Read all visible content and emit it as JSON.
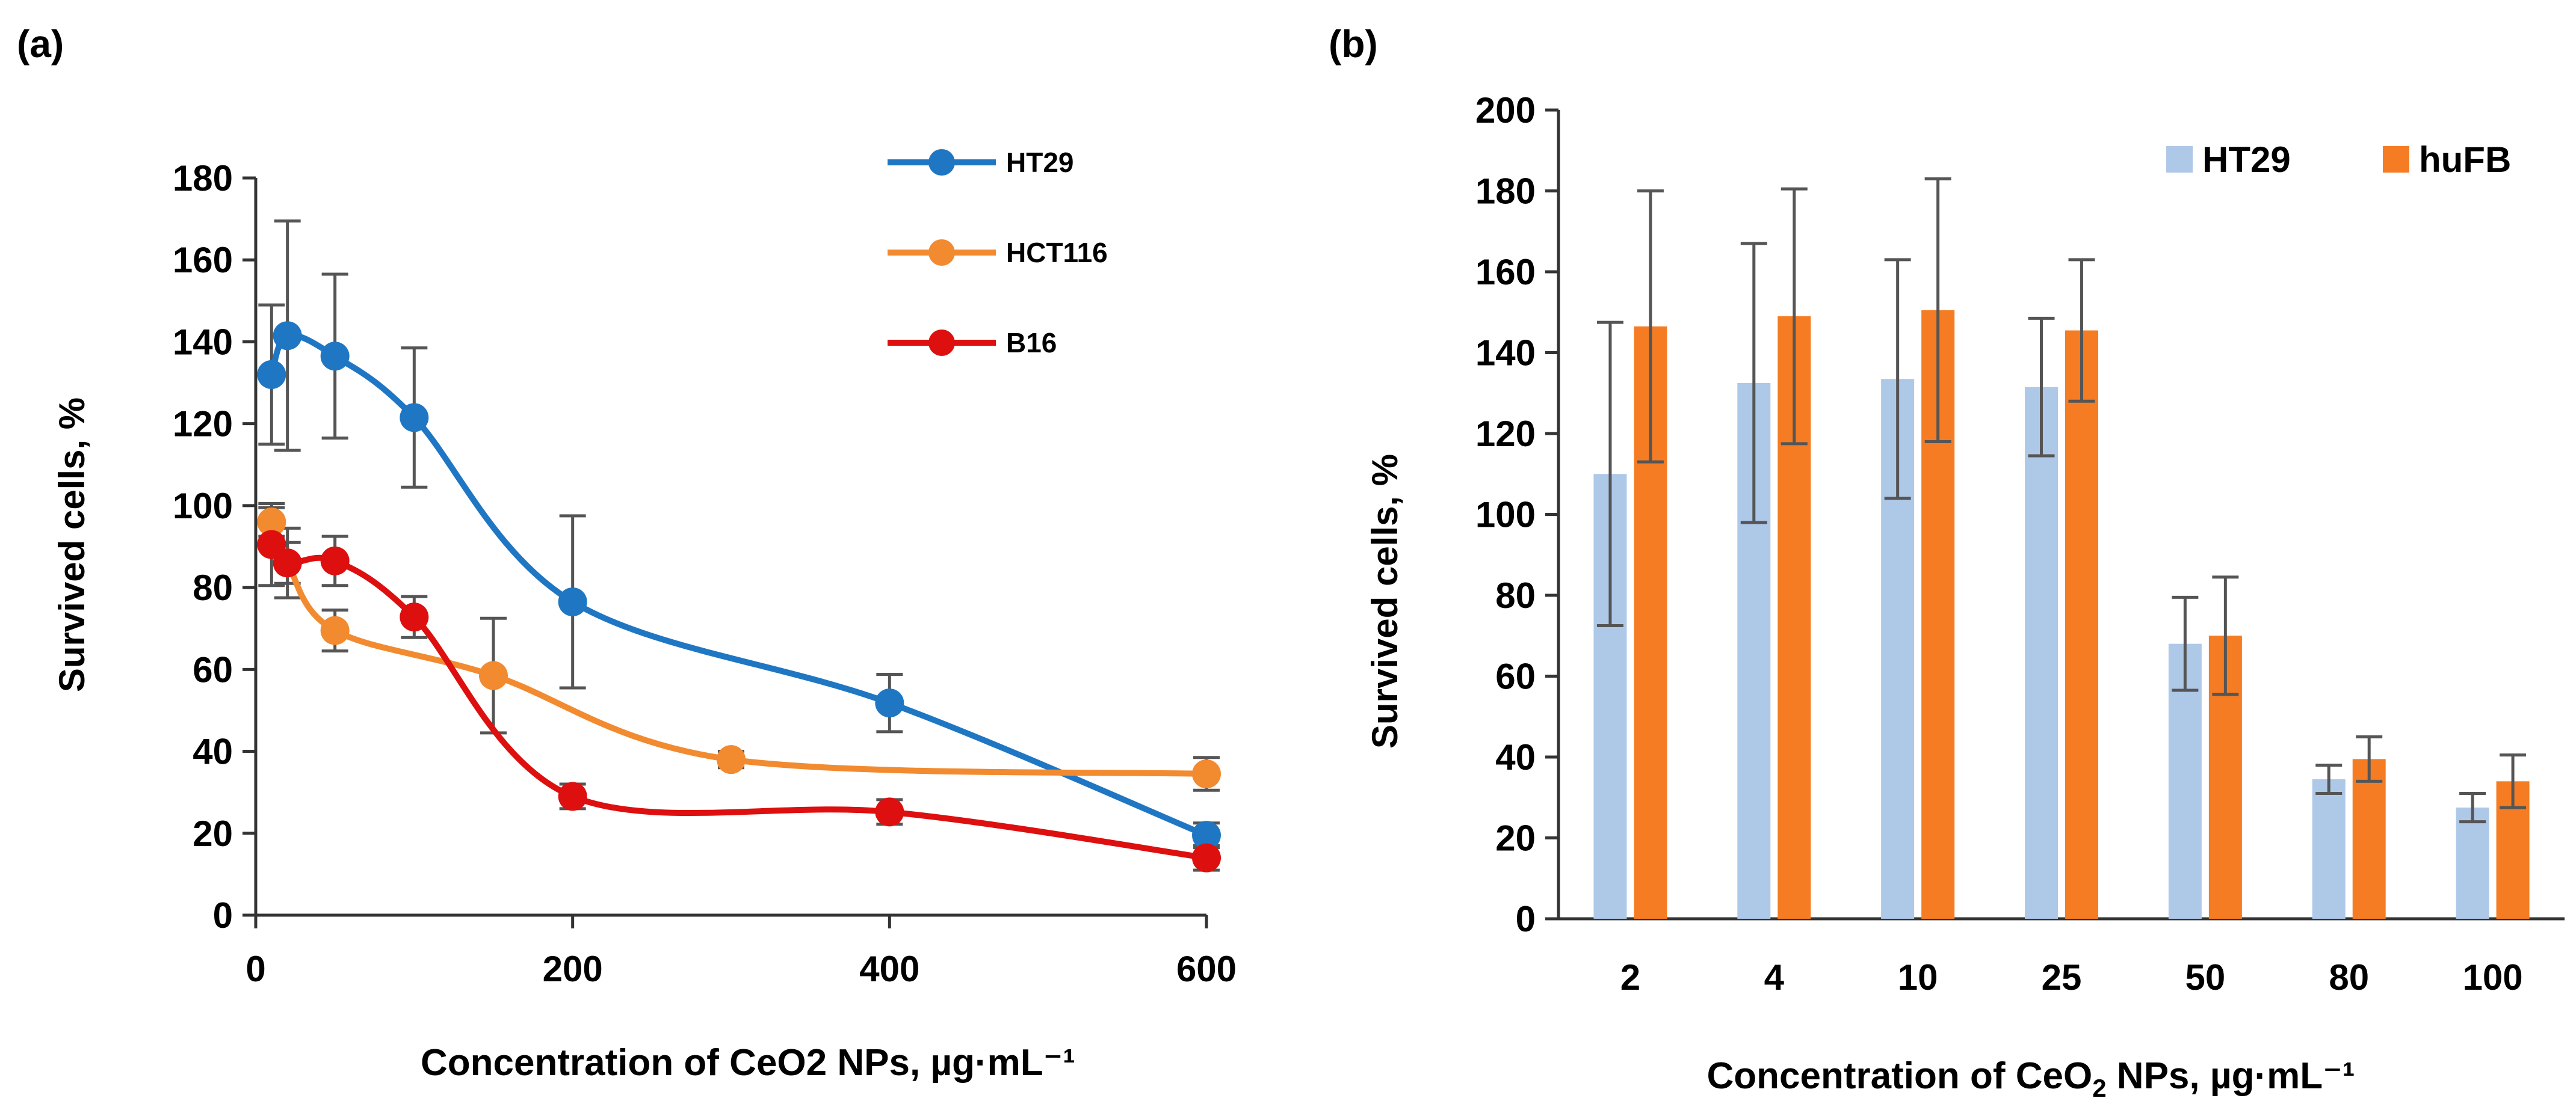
{
  "chart_data": [
    {
      "panel_label": "(a)",
      "type": "line",
      "xlabel": "Concentration of CeO2 NPs, µg·mL⁻¹",
      "ylabel": "Survived cells, %",
      "xlim": [
        0,
        600
      ],
      "ylim": [
        0,
        180
      ],
      "x_ticks": [
        0,
        200,
        400,
        600
      ],
      "y_ticks": [
        0,
        20,
        40,
        60,
        80,
        100,
        120,
        140,
        160,
        180
      ],
      "grid": false,
      "legend_position": "top-right",
      "series": [
        {
          "name": "HT29",
          "color": "#1f77c4",
          "x": [
            10,
            20,
            50,
            100,
            200,
            400,
            600
          ],
          "y": [
            132,
            141.5,
            136.5,
            121.5,
            76.5,
            51.8,
            19.5
          ],
          "err": [
            17,
            28,
            20,
            17,
            21,
            7,
            3
          ]
        },
        {
          "name": "HCT116",
          "color": "#f28a30",
          "x": [
            10,
            20,
            50,
            150,
            300,
            600
          ],
          "y": [
            96,
            86,
            69.5,
            58.5,
            38,
            34.5
          ],
          "err": [
            3.5,
            5,
            5,
            14,
            2,
            4
          ]
        },
        {
          "name": "B16",
          "color": "#dd0f0f",
          "x": [
            10,
            20,
            50,
            100,
            200,
            400,
            600
          ],
          "y": [
            90.5,
            86,
            86.5,
            72.8,
            29,
            25.2,
            14
          ],
          "err": [
            10,
            8.5,
            6,
            5,
            3,
            3,
            3
          ]
        }
      ]
    },
    {
      "panel_label": "(b)",
      "type": "bar",
      "xlabel_main": "Concentration of CeO",
      "xlabel_sub": "2",
      "xlabel_tail": " NPs, µg·mL⁻¹",
      "ylabel": "Survived cells, %",
      "ylim": [
        0,
        200
      ],
      "y_ticks": [
        0,
        20,
        40,
        60,
        80,
        100,
        120,
        140,
        160,
        180,
        200
      ],
      "categories": [
        "2",
        "4",
        "10",
        "25",
        "50",
        "80",
        "100"
      ],
      "grid": false,
      "legend_position": "top-right",
      "series": [
        {
          "name": "HT29",
          "color": "#aec8e8",
          "values": [
            110,
            132.5,
            133.5,
            131.5,
            68,
            34.5,
            27.5
          ],
          "err": [
            37.5,
            34.5,
            29.5,
            17,
            11.5,
            3.5,
            3.5
          ]
        },
        {
          "name": "huFB",
          "color": "#f57c22",
          "values": [
            146.5,
            149,
            150.5,
            145.5,
            70,
            39.5,
            34
          ],
          "err": [
            33.5,
            31.5,
            32.5,
            17.5,
            14.5,
            5.5,
            6.5
          ]
        }
      ]
    }
  ]
}
